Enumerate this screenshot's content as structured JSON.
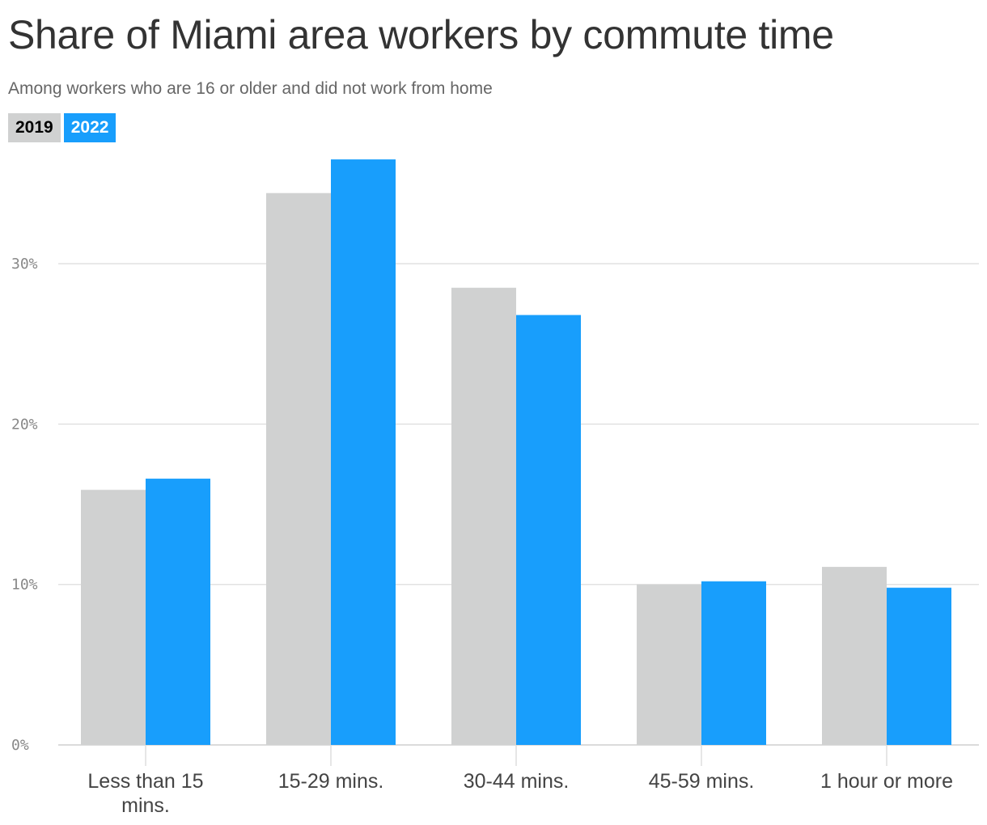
{
  "chart_data": {
    "type": "bar",
    "title": "Share of Miami area workers by commute time",
    "subtitle": "Among workers who are 16 or older and did not work from home",
    "categories": [
      "Less than 15 mins.",
      "15-29 mins.",
      "30-44 mins.",
      "45-59 mins.",
      "1 hour or more"
    ],
    "series": [
      {
        "name": "2019",
        "color": "#d0d1d1",
        "values": [
          15.9,
          34.4,
          28.5,
          10.0,
          11.1
        ]
      },
      {
        "name": "2022",
        "color": "#189efc",
        "values": [
          16.6,
          36.5,
          26.8,
          10.2,
          9.8
        ]
      }
    ],
    "ylim": [
      0,
      37
    ],
    "yticks": [
      0,
      10,
      20,
      30
    ],
    "ytick_labels": [
      "0%",
      "10%",
      "20%",
      "30%"
    ],
    "xlabel": "",
    "ylabel": "",
    "grid": true,
    "legend_position": "top-left"
  }
}
